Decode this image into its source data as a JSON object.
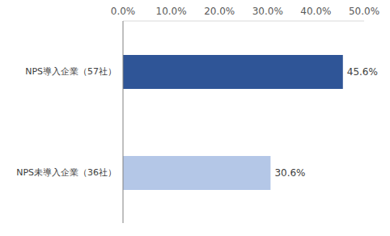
{
  "chart_data": {
    "type": "bar",
    "orientation": "horizontal",
    "categories": [
      "NPS導入企業（57社）",
      "NPS未導入企業（36社）"
    ],
    "values": [
      45.6,
      30.6
    ],
    "value_labels": [
      "45.6%",
      "30.6%"
    ],
    "colors": [
      "#2F5597",
      "#B4C7E7"
    ],
    "xlim": [
      0,
      50
    ],
    "xticks": [
      {
        "value": 0,
        "label": "0.0%"
      },
      {
        "value": 10,
        "label": "10.0%"
      },
      {
        "value": 20,
        "label": "20.0%"
      },
      {
        "value": 30,
        "label": "30.0%"
      },
      {
        "value": 40,
        "label": "40.0%"
      },
      {
        "value": 50,
        "label": "50.0%"
      }
    ],
    "data_labels": true,
    "grid": false
  }
}
